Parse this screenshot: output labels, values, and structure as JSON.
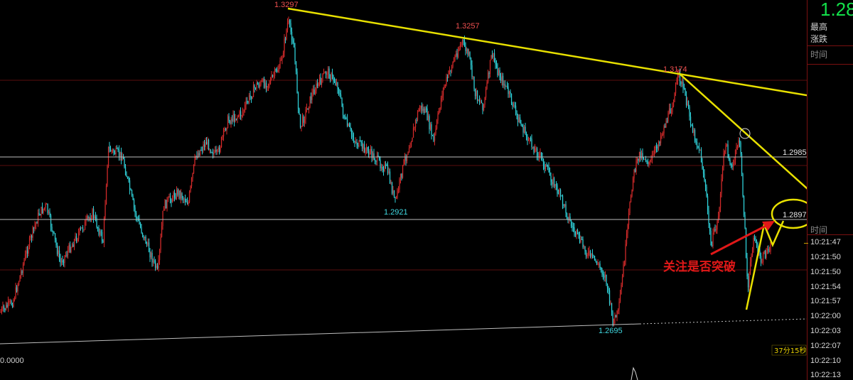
{
  "chart_data": {
    "type": "line",
    "ylim": [
      1.262,
      1.332
    ],
    "price_lines": [
      {
        "value": 1.2985,
        "label": "1.2985"
      },
      {
        "value": 1.2897,
        "label": "1.2897"
      }
    ],
    "extremes": [
      {
        "label": "1.3297",
        "kind": "high"
      },
      {
        "label": "1.3257",
        "kind": "high"
      },
      {
        "label": "1.3174",
        "kind": "high"
      },
      {
        "label": "1.2921",
        "kind": "low"
      },
      {
        "label": "1.2695",
        "kind": "low"
      }
    ],
    "annotation": "关注是否突破",
    "countdown": "37分15秒",
    "zero_label": "0.0000"
  },
  "side_panel": {
    "current_price": "1.28",
    "labels": [
      "最高",
      "涨跌",
      "时间"
    ],
    "time_header": "时间",
    "times": [
      "10:21:47",
      "10:21:50",
      "10:21:50",
      "10:21:54",
      "10:21:57",
      "10:22:00",
      "10:22:03",
      "10:22:07",
      "10:22:10",
      "10:22:13"
    ]
  },
  "colors": {
    "up": "#d22a2a",
    "down": "#2fd0d8",
    "trend": "#e8e000",
    "annotation": "#e01818",
    "grid": "#5a0e0e",
    "hline": "#bdbdbd",
    "price_green": "#13e04a"
  }
}
